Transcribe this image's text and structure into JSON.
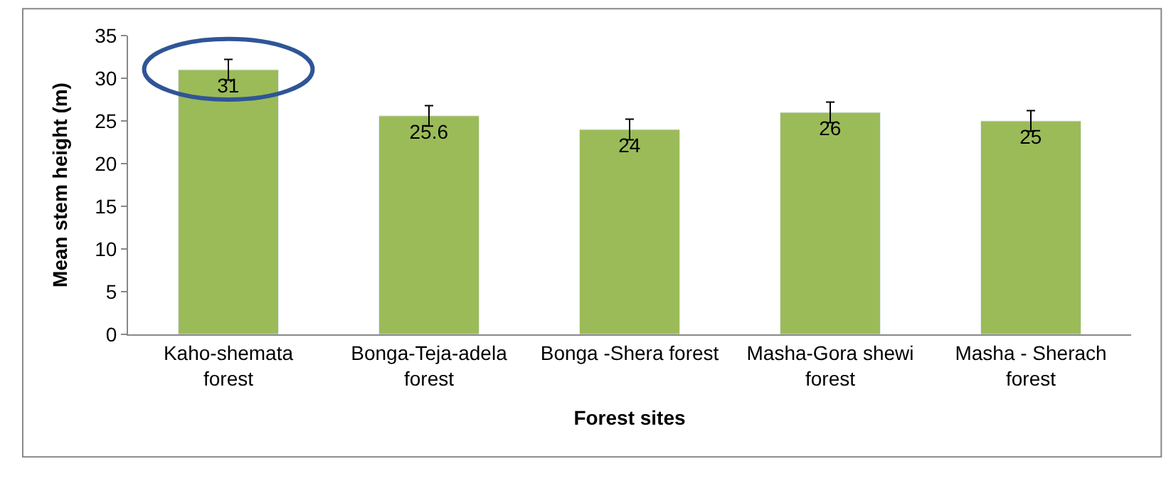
{
  "chart_data": {
    "type": "bar",
    "xlabel": "Forest sites",
    "ylabel": "Mean stem height (m)",
    "categories": [
      "Kaho-shemata\nforest",
      "Bonga-Teja-adela\nforest",
      "Bonga -Shera forest",
      "Masha-Gora shewi\nforest",
      "Masha - Sherach\nforest"
    ],
    "values": [
      31,
      25.6,
      24,
      26,
      25
    ],
    "errors": [
      1.2,
      1.2,
      1.2,
      1.2,
      1.2
    ],
    "color": "#9bbb59",
    "data_labels": true,
    "legend": false,
    "ylim": [
      0,
      35
    ],
    "yticks": [
      0,
      5,
      10,
      15,
      20,
      25,
      30,
      35
    ]
  }
}
